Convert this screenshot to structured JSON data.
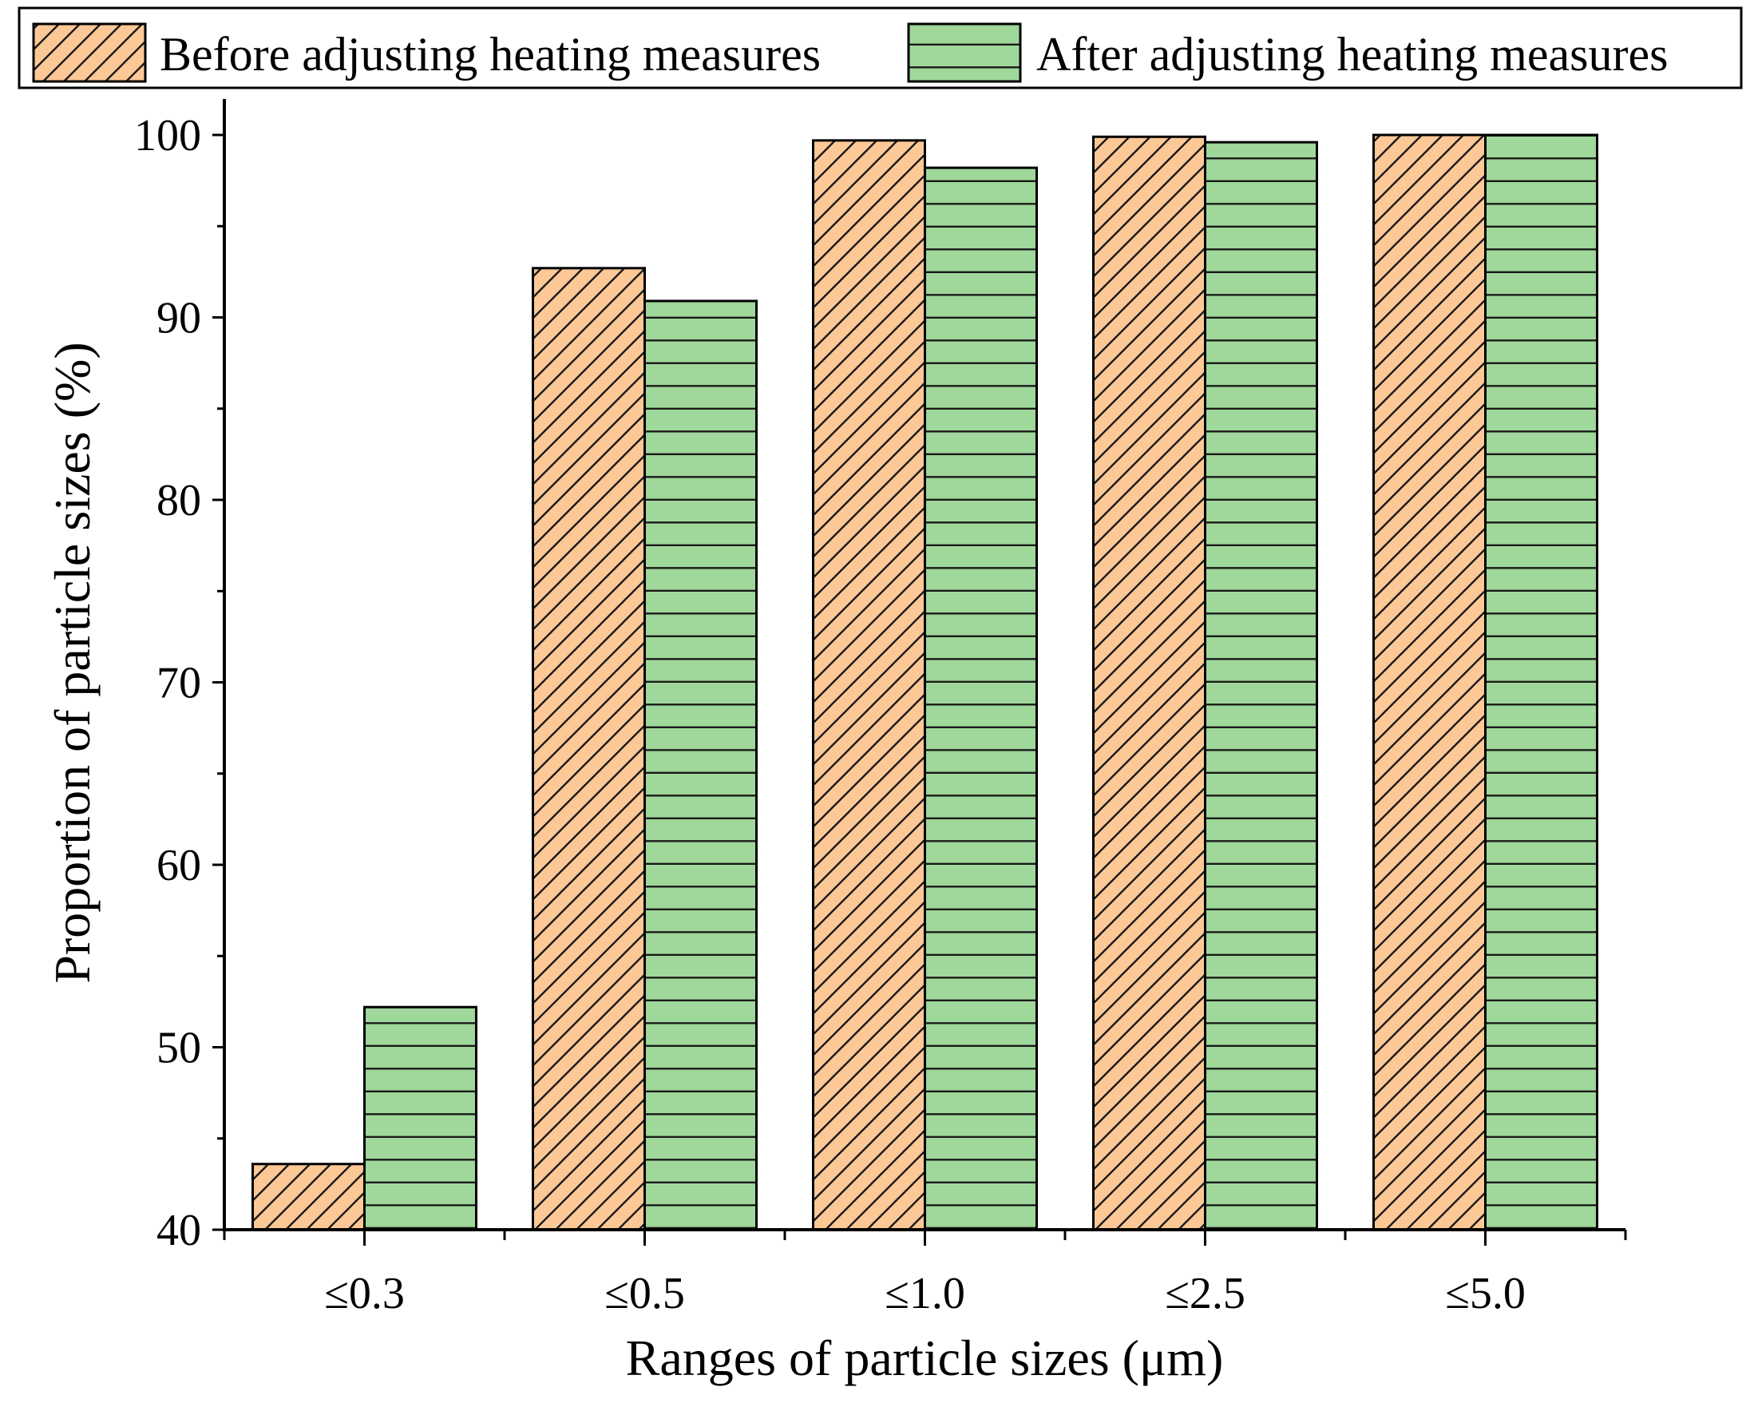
{
  "chart_data": {
    "type": "bar",
    "title": "",
    "xlabel": "Ranges of particle sizes (μm)",
    "ylabel": "Proportion of particle sizes (%)",
    "categories": [
      "≤0.3",
      "≤0.5",
      "≤1.0",
      "≤2.5",
      "≤5.0"
    ],
    "series": [
      {
        "name": "Before adjusting heating measures",
        "values": [
          43.6,
          92.7,
          99.7,
          99.9,
          100.0
        ],
        "color": "#FCC896",
        "pattern": "diagonal-hatch"
      },
      {
        "name": "After adjusting heating measures",
        "values": [
          52.2,
          90.9,
          98.2,
          99.6,
          100.0
        ],
        "color": "#9FD89A",
        "pattern": "horizontal-lines"
      }
    ],
    "ylim": [
      40,
      102
    ],
    "yticks": [
      40,
      50,
      60,
      70,
      80,
      90,
      100
    ],
    "ytick_labels": [
      "40",
      "50",
      "60",
      "70",
      "80",
      "90",
      "100"
    ],
    "grid": false,
    "legend_position": "top"
  }
}
